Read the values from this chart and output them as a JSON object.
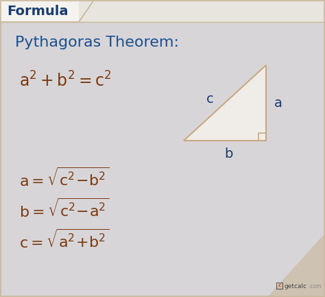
{
  "main_bg": "#dcdadc",
  "header_bg": "#f0eeec",
  "header_tab_bg": "#e8e4e0",
  "header_text": "Formula",
  "header_text_color": "#1a3d6e",
  "border_color": "#c8b89a",
  "title_text": "Pythagoras Theorem:",
  "title_color": "#1a5090",
  "formula_color": "#7a3a10",
  "triangle_stroke": "#c8a882",
  "label_color": "#1a3d6e",
  "watermark_text": "getCalc",
  "watermark_dot": ".com",
  "watermark_bg": "#c8b89a"
}
